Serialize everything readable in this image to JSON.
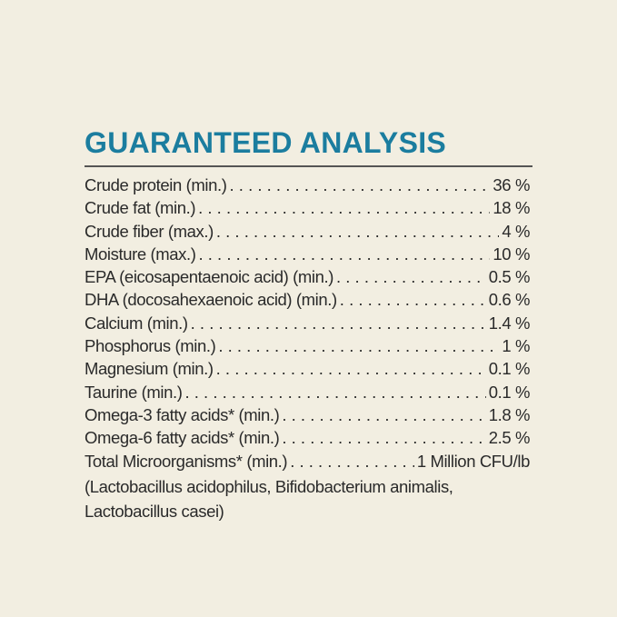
{
  "title": "GUARANTEED ANALYSIS",
  "rows": [
    {
      "label": "Crude protein (min.)",
      "value": "36 %"
    },
    {
      "label": "Crude fat (min.)",
      "value": "18 %"
    },
    {
      "label": "Crude fiber (max.)",
      "value": "4 %"
    },
    {
      "label": "Moisture (max.)",
      "value": "10 %"
    },
    {
      "label": "EPA (eicosapentaenoic acid) (min.)",
      "value": "0.5 %"
    },
    {
      "label": "DHA (docosahexaenoic acid) (min.)",
      "value": "0.6 %"
    },
    {
      "label": "Calcium (min.)",
      "value": "1.4 %"
    },
    {
      "label": "Phosphorus (min.)",
      "value": "1 %"
    },
    {
      "label": "Magnesium (min.)",
      "value": "0.1 %"
    },
    {
      "label": "Taurine (min.)",
      "value": "0.1 %"
    },
    {
      "label": "Omega-3 fatty acids* (min.)",
      "value": "1.8 %"
    },
    {
      "label": "Omega-6 fatty acids* (min.)",
      "value": "2.5 %"
    },
    {
      "label": "Total Microorganisms* (min.)",
      "value": "1 Million CFU/lb"
    }
  ],
  "note_line1": "(Lactobacillus acidophilus, Bifidobacterium animalis,",
  "note_line2": "Lactobacillus casei)",
  "colors": {
    "background": "#f2eee1",
    "title": "#1b7d9f",
    "text": "#2a2a2a"
  }
}
